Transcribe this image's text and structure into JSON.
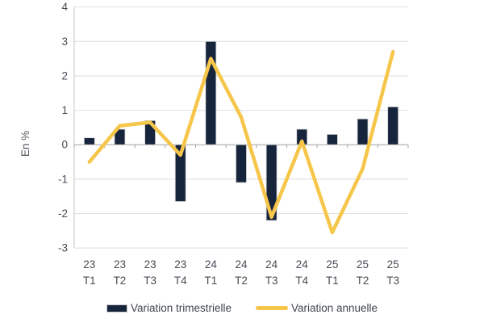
{
  "chart_data": {
    "type": "bar+line",
    "title": "",
    "ylabel": "En %",
    "xlabel": "",
    "ylim": [
      -3,
      4
    ],
    "yticks": [
      4,
      3,
      2,
      1,
      0,
      -1,
      -2,
      -3
    ],
    "grid": true,
    "legend_position": "bottom",
    "categories": [
      "23 T1",
      "23 T2",
      "23 T3",
      "23 T4",
      "24 T1",
      "24 T2",
      "24 T3",
      "24 T4",
      "25 T1",
      "25 T2",
      "25 T3"
    ],
    "series": [
      {
        "name": "Variation trimestrielle",
        "type": "bar",
        "color": "#16243C",
        "values": [
          0.2,
          0.45,
          0.7,
          -1.65,
          3.0,
          -1.1,
          -2.2,
          0.45,
          0.3,
          0.75,
          1.1
        ]
      },
      {
        "name": "Variation annuelle",
        "type": "line",
        "color": "#F6C64A",
        "values": [
          -0.5,
          0.55,
          0.65,
          -0.3,
          2.5,
          0.8,
          -2.1,
          0.1,
          -2.55,
          -0.7,
          2.7
        ]
      }
    ],
    "colors": {
      "gridline": "#dedede",
      "zero_line": "#a3a3a3",
      "axis_line": "#c9c9c9",
      "tick_label": "#474b54",
      "bar_outline": "#d4d4d4"
    }
  }
}
